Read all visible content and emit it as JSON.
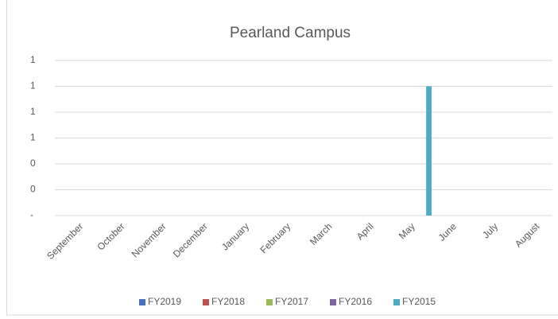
{
  "chart_data": {
    "type": "bar",
    "title": "Pearland Campus",
    "categories": [
      "September",
      "October",
      "November",
      "December",
      "January",
      "February",
      "March",
      "April",
      "May",
      "June",
      "July",
      "August"
    ],
    "series": [
      {
        "name": "FY2019",
        "color": "#4472c4",
        "values": [
          0,
          0,
          0,
          0,
          0,
          0,
          0,
          0,
          0,
          0,
          0,
          0
        ]
      },
      {
        "name": "FY2018",
        "color": "#c0504d",
        "values": [
          0,
          0,
          0,
          0,
          0,
          0,
          0,
          0,
          0,
          0,
          0,
          0
        ]
      },
      {
        "name": "FY2017",
        "color": "#9bbb59",
        "values": [
          0,
          0,
          0,
          0,
          0,
          0,
          0,
          0,
          0,
          0,
          0,
          0
        ]
      },
      {
        "name": "FY2016",
        "color": "#8064a2",
        "values": [
          0,
          0,
          0,
          0,
          0,
          0,
          0,
          0,
          0,
          0,
          0,
          0
        ]
      },
      {
        "name": "FY2015",
        "color": "#4bacc6",
        "values": [
          0,
          0,
          0,
          0,
          0,
          0,
          0,
          0,
          1,
          0,
          0,
          0
        ]
      }
    ],
    "ylim": [
      0,
      1.2
    ],
    "yticks": [
      {
        "value": 0,
        "label": "-"
      },
      {
        "value": 0.2,
        "label": "0"
      },
      {
        "value": 0.4,
        "label": "0"
      },
      {
        "value": 0.6,
        "label": "1"
      },
      {
        "value": 0.8,
        "label": "1"
      },
      {
        "value": 1.0,
        "label": "1"
      },
      {
        "value": 1.2,
        "label": "1"
      }
    ],
    "grid": true,
    "legend": "bottom"
  }
}
